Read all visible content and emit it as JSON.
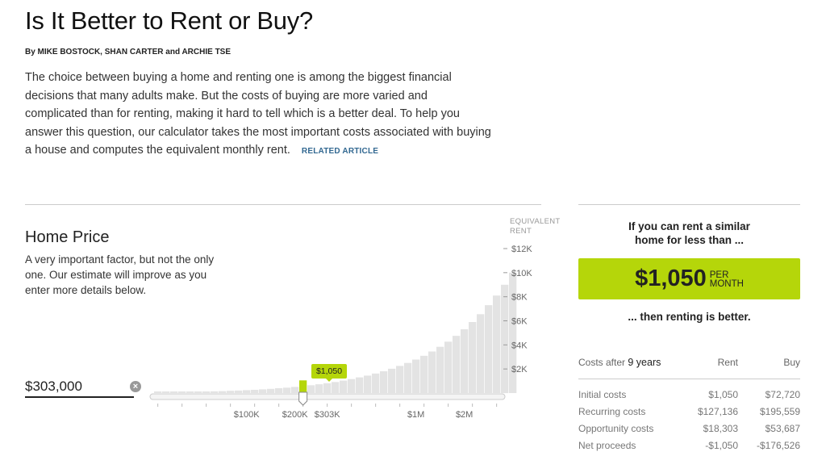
{
  "article": {
    "title": "Is It Better to Rent or Buy?",
    "byline": "By MIKE BOSTOCK, SHAN CARTER and ARCHIE TSE",
    "intro": "The choice between buying a home and renting one is among the biggest financial decisions that many adults make. But the costs of buying are more varied and complicated than for renting, making it hard to tell which is a better deal. To help you answer this question, our calculator takes the most important costs associated with buying a house and computes the equivalent monthly rent.",
    "related_link": "RELATED ARTICLE"
  },
  "home_price": {
    "title": "Home Price",
    "description": "A very important factor, but not the only one. Our estimate will improve as you enter more details below.",
    "input_value": "$303,000",
    "clear_icon": "close-circle-icon"
  },
  "chart_data": {
    "type": "bar",
    "y_axis_label_line1": "EQUIVALENT",
    "y_axis_label_line2": "RENT",
    "y_ticks": [
      "$12K",
      "$10K",
      "$8K",
      "$6K",
      "$4K",
      "$2K"
    ],
    "y_tick_values": [
      12000,
      10000,
      8000,
      6000,
      4000,
      2000
    ],
    "ylim": [
      0,
      12000
    ],
    "x_ticks": [
      "$100K",
      "$200K",
      "$303K",
      "$1M",
      "$2M"
    ],
    "selected_label": "$1,050",
    "selected_x_tick": "$303K",
    "selected_index": 18,
    "values": [
      40,
      50,
      60,
      75,
      90,
      105,
      120,
      140,
      160,
      185,
      210,
      240,
      270,
      310,
      350,
      400,
      450,
      510,
      1050,
      650,
      730,
      820,
      920,
      1030,
      1160,
      1300,
      1450,
      1620,
      1810,
      2020,
      2250,
      2500,
      2780,
      3100,
      3450,
      3840,
      4270,
      4750,
      5300,
      5900,
      6550,
      7300,
      8100,
      9000,
      10000
    ],
    "bar_color": "#e3e3e3",
    "selected_color": "#b5d60a"
  },
  "result": {
    "heading_line1": "If you can rent a similar",
    "heading_line2": "home for less than ...",
    "price": "$1,050",
    "unit_line1": "PER",
    "unit_line2": "MONTH",
    "conclusion": "... then renting is better.",
    "accent_color": "#b5d60a"
  },
  "costs": {
    "label_prefix": "Costs after",
    "years": "9 years",
    "col_rent": "Rent",
    "col_buy": "Buy",
    "rows": [
      {
        "label": "Initial costs",
        "rent": "$1,050",
        "buy": "$72,720"
      },
      {
        "label": "Recurring costs",
        "rent": "$127,136",
        "buy": "$195,559"
      },
      {
        "label": "Opportunity costs",
        "rent": "$18,303",
        "buy": "$53,687"
      },
      {
        "label": "Net proceeds",
        "rent": "-$1,050",
        "buy": "-$176,526"
      }
    ]
  }
}
